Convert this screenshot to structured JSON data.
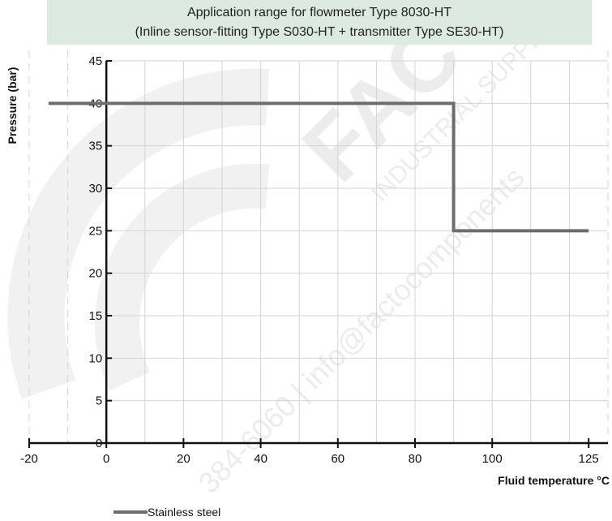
{
  "chart_data": {
    "type": "line",
    "title": "Application range for flowmeter Type 8030-HT",
    "subtitle": "(Inline sensor-fitting Type S030-HT + transmitter Type SE30-HT)",
    "xlabel": "Fluid temperature °C",
    "ylabel": "Pressure (bar)",
    "xlim": [
      -20,
      130
    ],
    "ylim": [
      0,
      45
    ],
    "x_ticks": [
      -20,
      0,
      20,
      40,
      60,
      80,
      100,
      125
    ],
    "y_ticks": [
      0,
      5,
      10,
      15,
      20,
      25,
      30,
      35,
      40,
      45
    ],
    "grid": true,
    "legend_position": "bottom-left",
    "series": [
      {
        "name": "Stainless steel",
        "color": "#6b6e70",
        "x": [
          -15,
          90,
          90,
          125
        ],
        "y": [
          40,
          40,
          25,
          25
        ]
      }
    ]
  },
  "watermark": {
    "brand": "FACTO",
    "line1": "INDUSTRIAL SUPPLY",
    "line2": "384-6060 | info@factocomponents"
  }
}
